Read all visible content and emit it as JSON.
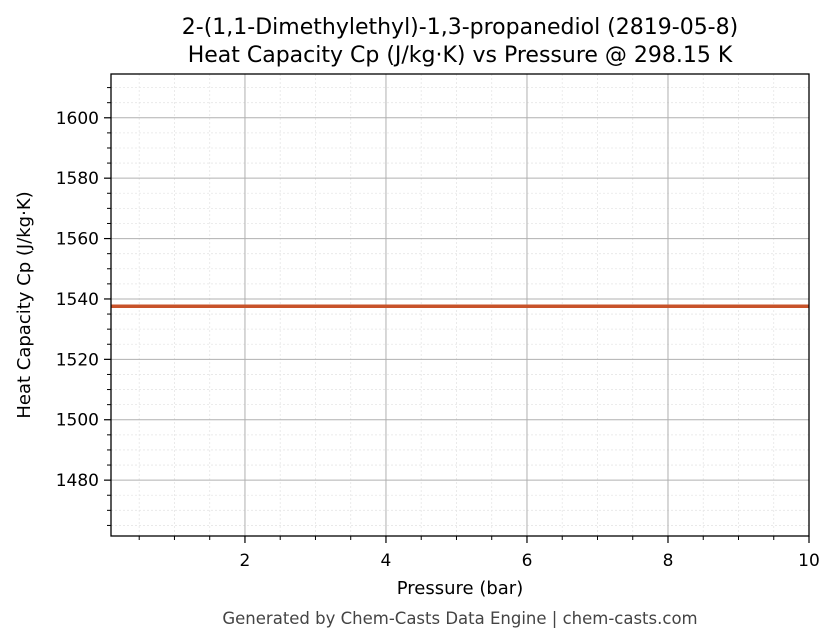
{
  "chart_data": {
    "type": "line",
    "title": "2-(1,1-Dimethylethyl)-1,3-propanediol (2819-05-8)",
    "subtitle": "Heat Capacity Cp (J/kg·K) vs Pressure @ 298.15 K",
    "xlabel": "Pressure (bar)",
    "ylabel": "Heat Capacity Cp (J/kg·K)",
    "xlim": [
      0.1,
      10
    ],
    "ylim": [
      1461.5,
      1614.5
    ],
    "x_ticks": [
      2,
      4,
      6,
      8,
      10
    ],
    "y_ticks": [
      1480,
      1500,
      1520,
      1540,
      1560,
      1580,
      1600
    ],
    "x_minor_step": 0.5,
    "y_minor_step": 5,
    "grid": true,
    "series": [
      {
        "color": "#c8532a",
        "x": [
          0.1,
          10
        ],
        "y": [
          1537.6,
          1537.6
        ]
      }
    ]
  },
  "footer": "Generated by Chem-Casts Data Engine | chem-casts.com"
}
